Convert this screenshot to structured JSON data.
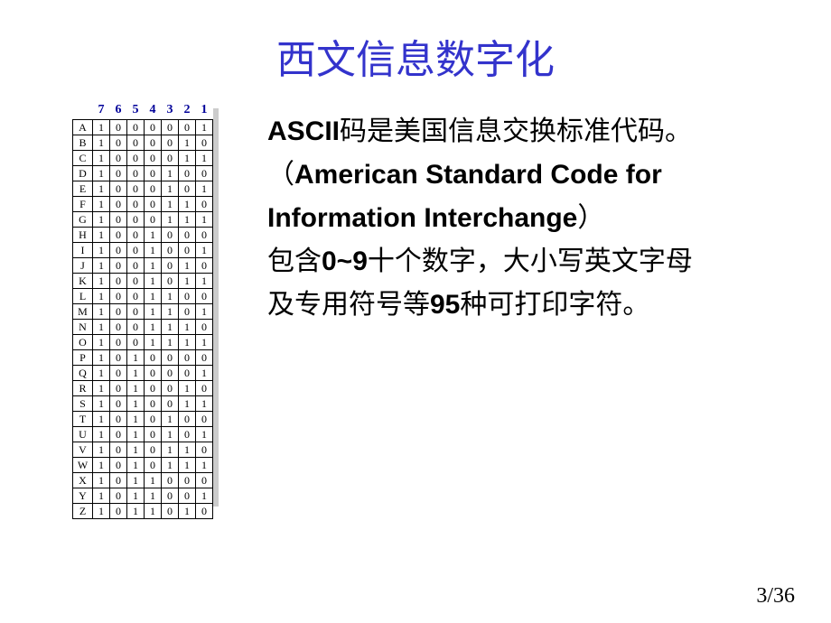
{
  "title": "西文信息数字化",
  "table": {
    "header_color": "#000099",
    "headers": [
      "",
      "7",
      "6",
      "5",
      "4",
      "3",
      "2",
      "1"
    ],
    "rows": [
      [
        "A",
        "1",
        "0",
        "0",
        "0",
        "0",
        "0",
        "1"
      ],
      [
        "B",
        "1",
        "0",
        "0",
        "0",
        "0",
        "1",
        "0"
      ],
      [
        "C",
        "1",
        "0",
        "0",
        "0",
        "0",
        "1",
        "1"
      ],
      [
        "D",
        "1",
        "0",
        "0",
        "0",
        "1",
        "0",
        "0"
      ],
      [
        "E",
        "1",
        "0",
        "0",
        "0",
        "1",
        "0",
        "1"
      ],
      [
        "F",
        "1",
        "0",
        "0",
        "0",
        "1",
        "1",
        "0"
      ],
      [
        "G",
        "1",
        "0",
        "0",
        "0",
        "1",
        "1",
        "1"
      ],
      [
        "H",
        "1",
        "0",
        "0",
        "1",
        "0",
        "0",
        "0"
      ],
      [
        "I",
        "1",
        "0",
        "0",
        "1",
        "0",
        "0",
        "1"
      ],
      [
        "J",
        "1",
        "0",
        "0",
        "1",
        "0",
        "1",
        "0"
      ],
      [
        "K",
        "1",
        "0",
        "0",
        "1",
        "0",
        "1",
        "1"
      ],
      [
        "L",
        "1",
        "0",
        "0",
        "1",
        "1",
        "0",
        "0"
      ],
      [
        "M",
        "1",
        "0",
        "0",
        "1",
        "1",
        "0",
        "1"
      ],
      [
        "N",
        "1",
        "0",
        "0",
        "1",
        "1",
        "1",
        "0"
      ],
      [
        "O",
        "1",
        "0",
        "0",
        "1",
        "1",
        "1",
        "1"
      ],
      [
        "P",
        "1",
        "0",
        "1",
        "0",
        "0",
        "0",
        "0"
      ],
      [
        "Q",
        "1",
        "0",
        "1",
        "0",
        "0",
        "0",
        "1"
      ],
      [
        "R",
        "1",
        "0",
        "1",
        "0",
        "0",
        "1",
        "0"
      ],
      [
        "S",
        "1",
        "0",
        "1",
        "0",
        "0",
        "1",
        "1"
      ],
      [
        "T",
        "1",
        "0",
        "1",
        "0",
        "1",
        "0",
        "0"
      ],
      [
        "U",
        "1",
        "0",
        "1",
        "0",
        "1",
        "0",
        "1"
      ],
      [
        "V",
        "1",
        "0",
        "1",
        "0",
        "1",
        "1",
        "0"
      ],
      [
        "W",
        "1",
        "0",
        "1",
        "0",
        "1",
        "1",
        "1"
      ],
      [
        "X",
        "1",
        "0",
        "1",
        "1",
        "0",
        "0",
        "0"
      ],
      [
        "Y",
        "1",
        "0",
        "1",
        "1",
        "0",
        "0",
        "1"
      ],
      [
        "Z",
        "1",
        "0",
        "1",
        "1",
        "0",
        "1",
        "0"
      ]
    ]
  },
  "body": {
    "line1_bold": "ASCII",
    "line1_rest": "码是美国信息交换标准代码。",
    "line2_open": "（",
    "line2_bold": "American Standard Code for",
    "line3_bold": "Information Interchange",
    "line3_close": "）",
    "line4_a": "包含",
    "line4_bold": "0~9",
    "line4_b": "十个数字，大小写英文字母",
    "line5_a": "及专用符号等",
    "line5_bold": "95",
    "line5_b": "种可打印字符。"
  },
  "page_number": "3/36"
}
